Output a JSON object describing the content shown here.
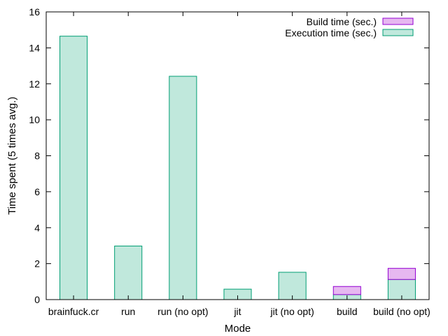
{
  "chart_data": {
    "type": "bar",
    "stacked": true,
    "title": "",
    "xlabel": "Mode",
    "ylabel": "Time spent (5 times avg.)",
    "ylim": [
      0,
      16
    ],
    "yticks": [
      0,
      2,
      4,
      6,
      8,
      10,
      12,
      14,
      16
    ],
    "grid": false,
    "legend_position": "top-right",
    "categories": [
      "brainfuck.cr",
      "run",
      "run (no opt)",
      "jit",
      "jit (no opt)",
      "build",
      "build (no opt)"
    ],
    "series": [
      {
        "name": "Build time (sec.)",
        "color": "#e6b8f0",
        "stroke": "#9400d3",
        "values": [
          0,
          0,
          0,
          0,
          0,
          0.45,
          0.62
        ]
      },
      {
        "name": "Execution time (sec.)",
        "color": "#c0e8dc",
        "stroke": "#009e73",
        "values": [
          14.65,
          2.98,
          12.42,
          0.58,
          1.52,
          0.28,
          1.12
        ]
      }
    ]
  }
}
